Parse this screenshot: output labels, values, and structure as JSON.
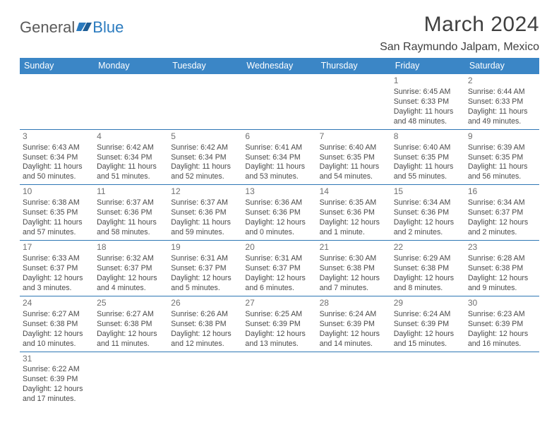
{
  "logo": {
    "text_gray": "General",
    "text_blue": "Blue"
  },
  "title": "March 2024",
  "location": "San Raymundo Jalpam, Mexico",
  "colors": {
    "header_bg": "#3b86c6",
    "row_border": "#2f77b5",
    "text": "#4a4a4a",
    "title_text": "#404040"
  },
  "day_headers": [
    "Sunday",
    "Monday",
    "Tuesday",
    "Wednesday",
    "Thursday",
    "Friday",
    "Saturday"
  ],
  "weeks": [
    [
      {
        "n": "",
        "sr": "",
        "ss": "",
        "dl": ""
      },
      {
        "n": "",
        "sr": "",
        "ss": "",
        "dl": ""
      },
      {
        "n": "",
        "sr": "",
        "ss": "",
        "dl": ""
      },
      {
        "n": "",
        "sr": "",
        "ss": "",
        "dl": ""
      },
      {
        "n": "",
        "sr": "",
        "ss": "",
        "dl": ""
      },
      {
        "n": "1",
        "sr": "Sunrise: 6:45 AM",
        "ss": "Sunset: 6:33 PM",
        "dl": "Daylight: 11 hours and 48 minutes."
      },
      {
        "n": "2",
        "sr": "Sunrise: 6:44 AM",
        "ss": "Sunset: 6:33 PM",
        "dl": "Daylight: 11 hours and 49 minutes."
      }
    ],
    [
      {
        "n": "3",
        "sr": "Sunrise: 6:43 AM",
        "ss": "Sunset: 6:34 PM",
        "dl": "Daylight: 11 hours and 50 minutes."
      },
      {
        "n": "4",
        "sr": "Sunrise: 6:42 AM",
        "ss": "Sunset: 6:34 PM",
        "dl": "Daylight: 11 hours and 51 minutes."
      },
      {
        "n": "5",
        "sr": "Sunrise: 6:42 AM",
        "ss": "Sunset: 6:34 PM",
        "dl": "Daylight: 11 hours and 52 minutes."
      },
      {
        "n": "6",
        "sr": "Sunrise: 6:41 AM",
        "ss": "Sunset: 6:34 PM",
        "dl": "Daylight: 11 hours and 53 minutes."
      },
      {
        "n": "7",
        "sr": "Sunrise: 6:40 AM",
        "ss": "Sunset: 6:35 PM",
        "dl": "Daylight: 11 hours and 54 minutes."
      },
      {
        "n": "8",
        "sr": "Sunrise: 6:40 AM",
        "ss": "Sunset: 6:35 PM",
        "dl": "Daylight: 11 hours and 55 minutes."
      },
      {
        "n": "9",
        "sr": "Sunrise: 6:39 AM",
        "ss": "Sunset: 6:35 PM",
        "dl": "Daylight: 11 hours and 56 minutes."
      }
    ],
    [
      {
        "n": "10",
        "sr": "Sunrise: 6:38 AM",
        "ss": "Sunset: 6:35 PM",
        "dl": "Daylight: 11 hours and 57 minutes."
      },
      {
        "n": "11",
        "sr": "Sunrise: 6:37 AM",
        "ss": "Sunset: 6:36 PM",
        "dl": "Daylight: 11 hours and 58 minutes."
      },
      {
        "n": "12",
        "sr": "Sunrise: 6:37 AM",
        "ss": "Sunset: 6:36 PM",
        "dl": "Daylight: 11 hours and 59 minutes."
      },
      {
        "n": "13",
        "sr": "Sunrise: 6:36 AM",
        "ss": "Sunset: 6:36 PM",
        "dl": "Daylight: 12 hours and 0 minutes."
      },
      {
        "n": "14",
        "sr": "Sunrise: 6:35 AM",
        "ss": "Sunset: 6:36 PM",
        "dl": "Daylight: 12 hours and 1 minute."
      },
      {
        "n": "15",
        "sr": "Sunrise: 6:34 AM",
        "ss": "Sunset: 6:36 PM",
        "dl": "Daylight: 12 hours and 2 minutes."
      },
      {
        "n": "16",
        "sr": "Sunrise: 6:34 AM",
        "ss": "Sunset: 6:37 PM",
        "dl": "Daylight: 12 hours and 2 minutes."
      }
    ],
    [
      {
        "n": "17",
        "sr": "Sunrise: 6:33 AM",
        "ss": "Sunset: 6:37 PM",
        "dl": "Daylight: 12 hours and 3 minutes."
      },
      {
        "n": "18",
        "sr": "Sunrise: 6:32 AM",
        "ss": "Sunset: 6:37 PM",
        "dl": "Daylight: 12 hours and 4 minutes."
      },
      {
        "n": "19",
        "sr": "Sunrise: 6:31 AM",
        "ss": "Sunset: 6:37 PM",
        "dl": "Daylight: 12 hours and 5 minutes."
      },
      {
        "n": "20",
        "sr": "Sunrise: 6:31 AM",
        "ss": "Sunset: 6:37 PM",
        "dl": "Daylight: 12 hours and 6 minutes."
      },
      {
        "n": "21",
        "sr": "Sunrise: 6:30 AM",
        "ss": "Sunset: 6:38 PM",
        "dl": "Daylight: 12 hours and 7 minutes."
      },
      {
        "n": "22",
        "sr": "Sunrise: 6:29 AM",
        "ss": "Sunset: 6:38 PM",
        "dl": "Daylight: 12 hours and 8 minutes."
      },
      {
        "n": "23",
        "sr": "Sunrise: 6:28 AM",
        "ss": "Sunset: 6:38 PM",
        "dl": "Daylight: 12 hours and 9 minutes."
      }
    ],
    [
      {
        "n": "24",
        "sr": "Sunrise: 6:27 AM",
        "ss": "Sunset: 6:38 PM",
        "dl": "Daylight: 12 hours and 10 minutes."
      },
      {
        "n": "25",
        "sr": "Sunrise: 6:27 AM",
        "ss": "Sunset: 6:38 PM",
        "dl": "Daylight: 12 hours and 11 minutes."
      },
      {
        "n": "26",
        "sr": "Sunrise: 6:26 AM",
        "ss": "Sunset: 6:38 PM",
        "dl": "Daylight: 12 hours and 12 minutes."
      },
      {
        "n": "27",
        "sr": "Sunrise: 6:25 AM",
        "ss": "Sunset: 6:39 PM",
        "dl": "Daylight: 12 hours and 13 minutes."
      },
      {
        "n": "28",
        "sr": "Sunrise: 6:24 AM",
        "ss": "Sunset: 6:39 PM",
        "dl": "Daylight: 12 hours and 14 minutes."
      },
      {
        "n": "29",
        "sr": "Sunrise: 6:24 AM",
        "ss": "Sunset: 6:39 PM",
        "dl": "Daylight: 12 hours and 15 minutes."
      },
      {
        "n": "30",
        "sr": "Sunrise: 6:23 AM",
        "ss": "Sunset: 6:39 PM",
        "dl": "Daylight: 12 hours and 16 minutes."
      }
    ],
    [
      {
        "n": "31",
        "sr": "Sunrise: 6:22 AM",
        "ss": "Sunset: 6:39 PM",
        "dl": "Daylight: 12 hours and 17 minutes."
      },
      {
        "n": "",
        "sr": "",
        "ss": "",
        "dl": ""
      },
      {
        "n": "",
        "sr": "",
        "ss": "",
        "dl": ""
      },
      {
        "n": "",
        "sr": "",
        "ss": "",
        "dl": ""
      },
      {
        "n": "",
        "sr": "",
        "ss": "",
        "dl": ""
      },
      {
        "n": "",
        "sr": "",
        "ss": "",
        "dl": ""
      },
      {
        "n": "",
        "sr": "",
        "ss": "",
        "dl": ""
      }
    ]
  ]
}
